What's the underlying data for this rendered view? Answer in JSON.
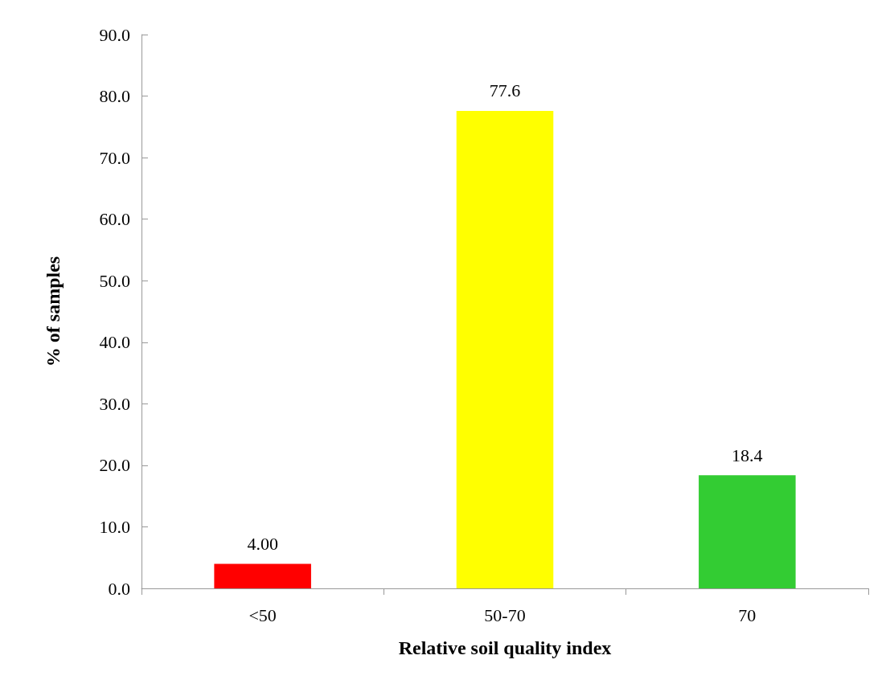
{
  "chart_data": {
    "type": "bar",
    "xlabel": "Relative soil quality index",
    "ylabel": "% of samples",
    "categories": [
      "<50",
      "50-70",
      "70"
    ],
    "values": [
      4.0,
      77.6,
      18.4
    ],
    "value_labels": [
      "4.00",
      "77.6",
      "18.4"
    ],
    "colors": [
      "#ff0000",
      "#ffff00",
      "#33cc33"
    ],
    "ylim": [
      0,
      90
    ],
    "yticks": [
      {
        "value": 0,
        "label": "0.0"
      },
      {
        "value": 10,
        "label": "10.0"
      },
      {
        "value": 20,
        "label": "20.0"
      },
      {
        "value": 30,
        "label": "30.0"
      },
      {
        "value": 40,
        "label": "40.0"
      },
      {
        "value": 50,
        "label": "50.0"
      },
      {
        "value": 60,
        "label": "60.0"
      },
      {
        "value": 70,
        "label": "70.0"
      },
      {
        "value": 80,
        "label": "80.0"
      },
      {
        "value": 90,
        "label": "90.0"
      }
    ],
    "grid": false
  }
}
